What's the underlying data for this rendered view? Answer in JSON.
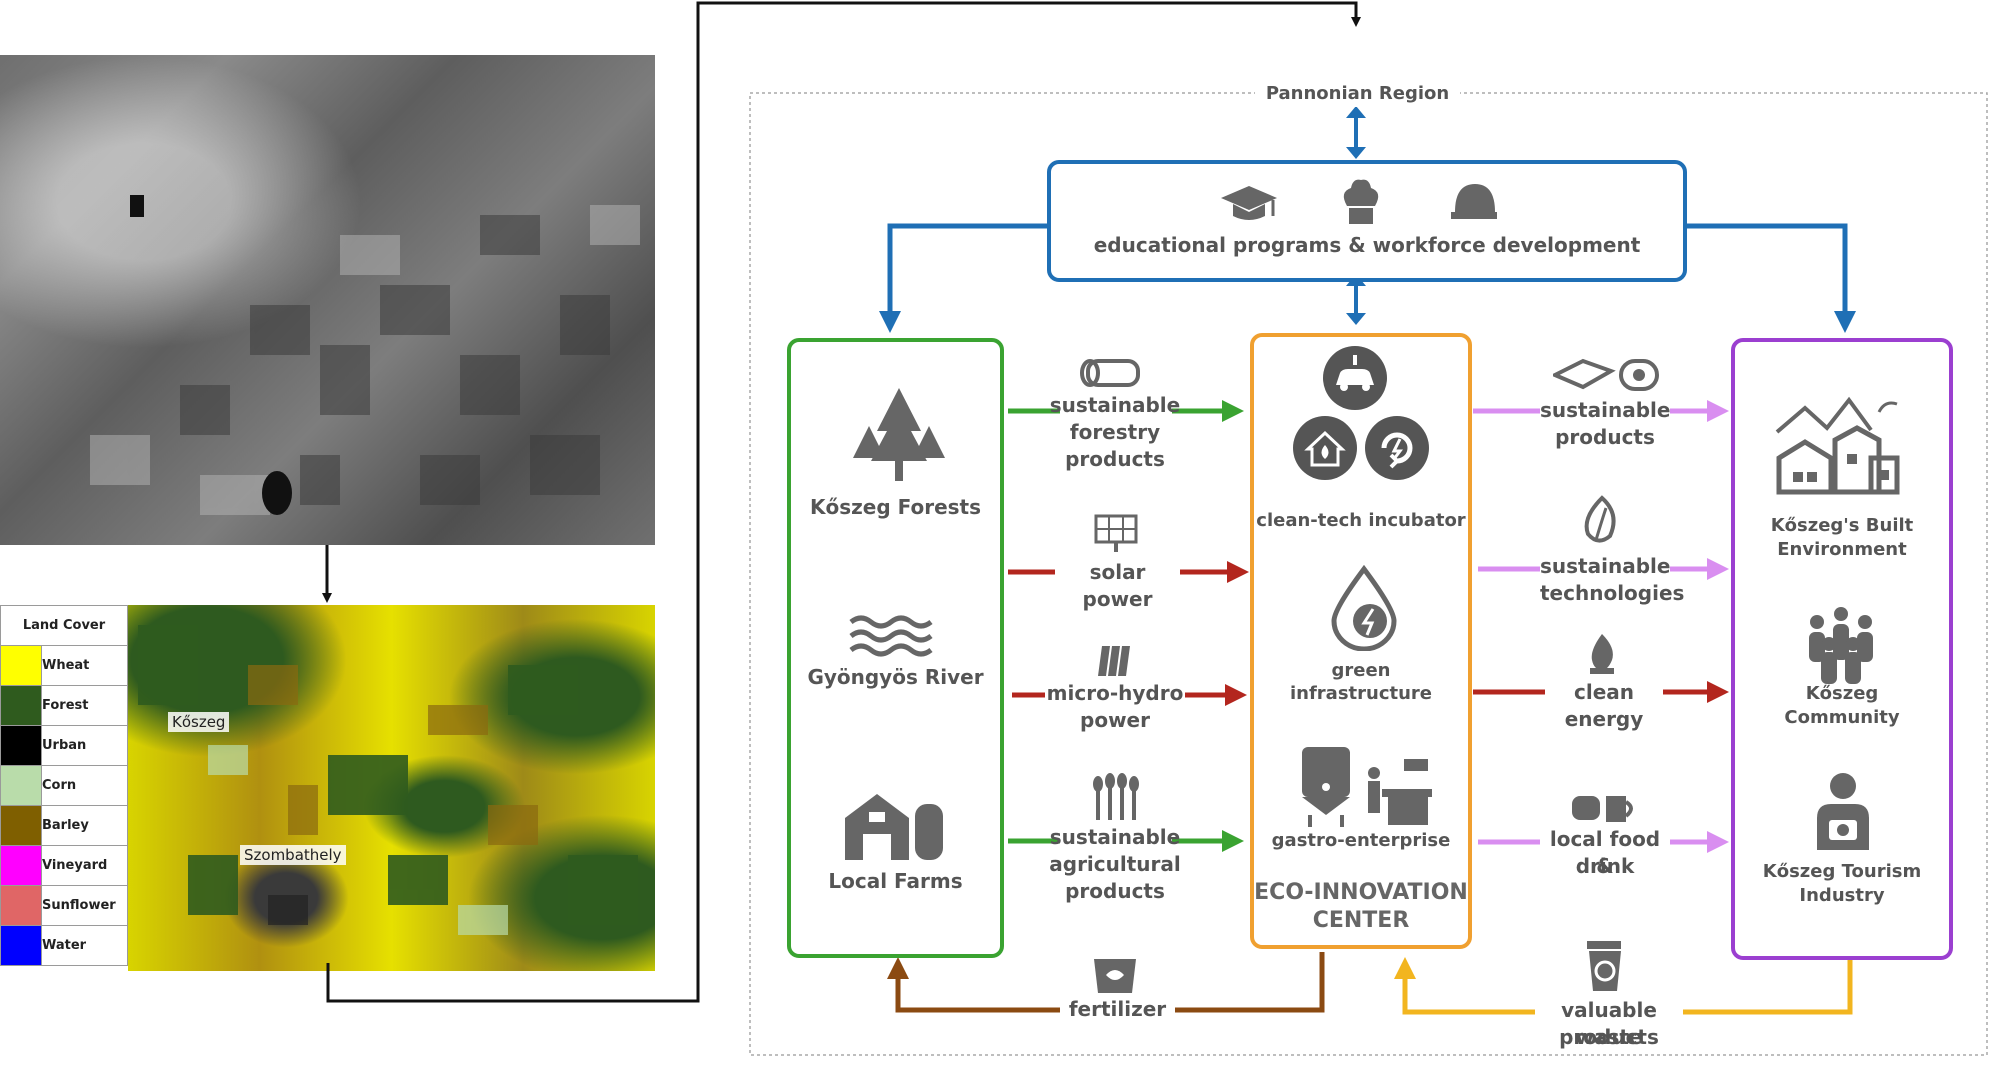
{
  "region_title": "Pannonian Region",
  "education": {
    "label": "educational programs & workforce development"
  },
  "map": {
    "legend_header": "Land Cover",
    "classes": [
      {
        "name": "Wheat",
        "color": "#ffff00"
      },
      {
        "name": "Forest",
        "color": "#2f5b1e"
      },
      {
        "name": "Urban",
        "color": "#000000"
      },
      {
        "name": "Corn",
        "color": "#b9dcaa"
      },
      {
        "name": "Barley",
        "color": "#7f5f00"
      },
      {
        "name": "Vineyard",
        "color": "#ff00ff"
      },
      {
        "name": "Sunflower",
        "color": "#e06666"
      },
      {
        "name": "Water",
        "color": "#0000ff"
      }
    ],
    "places": [
      "Kőszeg",
      "Szombathely"
    ]
  },
  "left_box": {
    "forests": "Kőszeg Forests",
    "river": "Gyöngyös River",
    "farms": "Local Farms"
  },
  "center": {
    "incubator": "clean-tech incubator",
    "green_line1": "green",
    "green_line2": "infrastructure",
    "gastro": "gastro-enterprise",
    "title_line1": "ECO-INNOVATION",
    "title_line2": "CENTER"
  },
  "right_box": {
    "built_line1": "Kőszeg's Built",
    "built_line2": "Environment",
    "community_line1": "Kőszeg",
    "community_line2": "Community",
    "tourism_line1": "Kőszeg Tourism",
    "tourism_line2": "Industry"
  },
  "left_flows": {
    "forestry": [
      "sustainable",
      "forestry",
      "products"
    ],
    "solar": "solar power",
    "hydro": [
      "micro-hydro",
      "power"
    ],
    "agri": [
      "sustainable",
      "agricultural",
      "products"
    ],
    "fertilizer": "fertilizer"
  },
  "right_flows": {
    "products": [
      "sustainable",
      "products"
    ],
    "tech": [
      "sustainable",
      "technologies"
    ],
    "energy": "clean energy",
    "food": [
      "local food &",
      "drink"
    ],
    "waste": [
      "valuable waste",
      "products"
    ]
  },
  "colors": {
    "blue": "#1f6fb5",
    "green": "#3aa331",
    "orange": "#f0a030",
    "purple": "#9b3fd0",
    "dark_red": "#b3261e",
    "light_purple": "#d98ef0",
    "brown": "#8b4a12",
    "gold": "#f2b51f",
    "teal": "#7fcac5",
    "gray": "#555555"
  }
}
